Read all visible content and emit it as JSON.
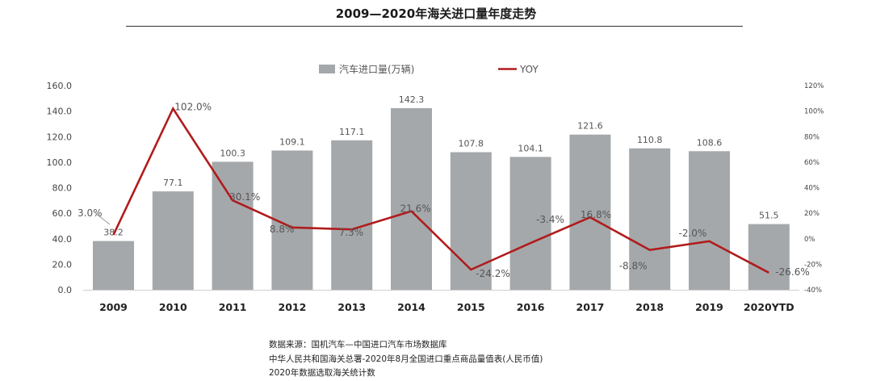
{
  "header": {
    "title": "2009—2020年海关进口量年度走势"
  },
  "chart_data": {
    "type": "bar+line",
    "title": "2009—2020年海关进口量年度走势",
    "categories": [
      "2009",
      "2010",
      "2011",
      "2012",
      "2013",
      "2014",
      "2015",
      "2016",
      "2017",
      "2018",
      "2019",
      "2020YTD"
    ],
    "series": [
      {
        "name": "汽车进口量(万辆)",
        "type": "bar",
        "axis": "left",
        "color": "#a5a8ab",
        "values": [
          38.2,
          77.1,
          100.3,
          109.1,
          117.1,
          142.3,
          107.8,
          104.1,
          121.6,
          110.8,
          108.6,
          51.5
        ],
        "labels": [
          "38.2",
          "77.1",
          "100.3",
          "109.1",
          "117.1",
          "142.3",
          "107.8",
          "104.1",
          "121.6",
          "110.8",
          "108.6",
          "51.5"
        ]
      },
      {
        "name": "YOY",
        "type": "line",
        "axis": "right",
        "color": "#b01c1c",
        "values": [
          3.0,
          102.0,
          30.1,
          8.8,
          7.3,
          21.6,
          -24.2,
          -3.4,
          16.8,
          -8.8,
          -2.0,
          -26.6
        ],
        "labels": [
          "3.0%",
          "102.0%",
          "30.1%",
          "8.8%",
          "7.3%",
          "21.6%",
          "-24.2%",
          "-3.4%",
          "16.8%",
          "-8.8%",
          "-2.0%",
          "-26.6%"
        ]
      }
    ],
    "y_left": {
      "ylim": [
        0,
        160
      ],
      "ticks": [
        0,
        20,
        40,
        60,
        80,
        100,
        120,
        140,
        160
      ],
      "tick_labels": [
        "0.0",
        "20.0",
        "40.0",
        "60.0",
        "80.0",
        "100.0",
        "120.0",
        "140.0",
        "160.0"
      ]
    },
    "y_right": {
      "ylim": [
        -40,
        120
      ],
      "ticks": [
        -40,
        -20,
        0,
        20,
        40,
        60,
        80,
        100,
        120
      ],
      "tick_labels": [
        "-40%",
        "-20%",
        "0%",
        "20%",
        "40%",
        "60%",
        "80%",
        "100%",
        "120%"
      ]
    },
    "grid": false,
    "legend": "top-center"
  },
  "source": {
    "lines": [
      "数据来源：国机汽车—中国进口汽车市场数据库",
      "中华人民共和国海关总署-2020年8月全国进口重点商品量值表(人民币值)",
      "2020年数据选取海关统计数"
    ]
  }
}
